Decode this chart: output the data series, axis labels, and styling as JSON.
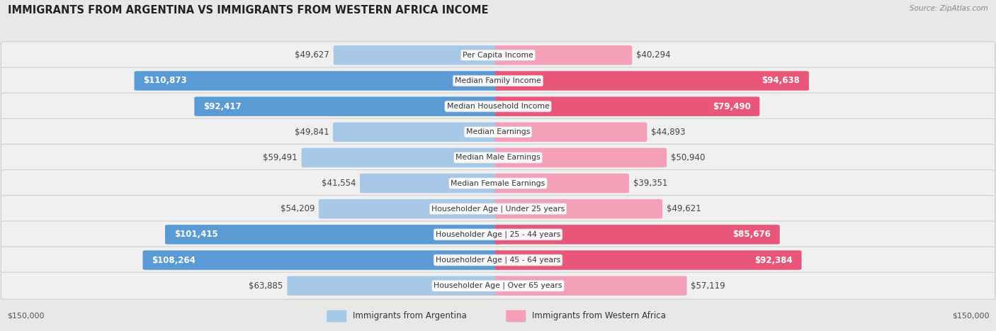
{
  "title": "IMMIGRANTS FROM ARGENTINA VS IMMIGRANTS FROM WESTERN AFRICA INCOME",
  "source": "Source: ZipAtlas.com",
  "categories": [
    "Per Capita Income",
    "Median Family Income",
    "Median Household Income",
    "Median Earnings",
    "Median Male Earnings",
    "Median Female Earnings",
    "Householder Age | Under 25 years",
    "Householder Age | 25 - 44 years",
    "Householder Age | 45 - 64 years",
    "Householder Age | Over 65 years"
  ],
  "argentina_values": [
    49627,
    110873,
    92417,
    49841,
    59491,
    41554,
    54209,
    101415,
    108264,
    63885
  ],
  "western_africa_values": [
    40294,
    94638,
    79490,
    44893,
    50940,
    39351,
    49621,
    85676,
    92384,
    57119
  ],
  "argentina_labels": [
    "$49,627",
    "$110,873",
    "$92,417",
    "$49,841",
    "$59,491",
    "$41,554",
    "$54,209",
    "$101,415",
    "$108,264",
    "$63,885"
  ],
  "western_africa_labels": [
    "$40,294",
    "$94,638",
    "$79,490",
    "$44,893",
    "$50,940",
    "$39,351",
    "$49,621",
    "$85,676",
    "$92,384",
    "$57,119"
  ],
  "max_value": 150000,
  "argentina_color_light": "#a8c8e8",
  "argentina_color_dark": "#5b9bd5",
  "western_africa_color_light": "#f4a0b8",
  "western_africa_color_dark": "#e8577a",
  "argentina_inside_threshold": 85000,
  "western_africa_inside_threshold": 75000,
  "background_color": "#e8e8e8",
  "row_bg_color": "#f0f0f0",
  "row_border_color": "#d0d0d0",
  "legend_argentina": "Immigrants from Argentina",
  "legend_western_africa": "Immigrants from Western Africa",
  "axis_label_left": "$150,000",
  "axis_label_right": "$150,000",
  "argentina_dark_indices": [
    1,
    2,
    7,
    8
  ],
  "western_africa_dark_indices": [
    1,
    2,
    7,
    8
  ]
}
